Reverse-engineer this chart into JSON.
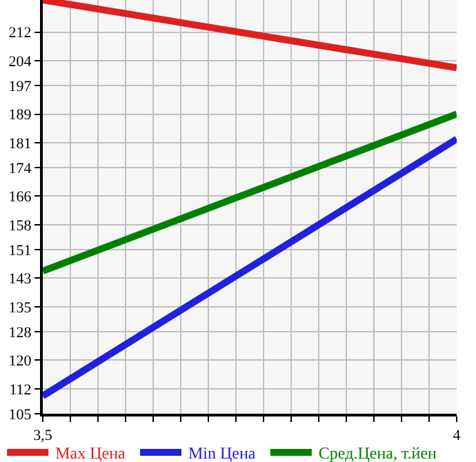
{
  "chart_data": {
    "type": "line",
    "x": [
      3.5,
      4
    ],
    "series": [
      {
        "name": "Max Цена",
        "color": "#dd2020",
        "values": [
          221,
          202
        ]
      },
      {
        "name": "Min Цена",
        "color": "#2020dd",
        "values": [
          110,
          182
        ]
      },
      {
        "name": "Сред.Цена, т.йен",
        "color": "#008000",
        "values": [
          145,
          189
        ]
      }
    ],
    "xlim": [
      3.5,
      4
    ],
    "xticks": [
      {
        "value": 3.5,
        "label": "3,5"
      },
      {
        "value": 3.5333,
        "label": null
      },
      {
        "value": 3.5667,
        "label": null
      },
      {
        "value": 3.6,
        "label": null
      },
      {
        "value": 3.6333,
        "label": null
      },
      {
        "value": 3.6667,
        "label": null
      },
      {
        "value": 3.7,
        "label": null
      },
      {
        "value": 3.7333,
        "label": null
      },
      {
        "value": 3.7667,
        "label": null
      },
      {
        "value": 3.8,
        "label": null
      },
      {
        "value": 3.8333,
        "label": null
      },
      {
        "value": 3.8667,
        "label": null
      },
      {
        "value": 3.9,
        "label": null
      },
      {
        "value": 3.9333,
        "label": null
      },
      {
        "value": 3.9667,
        "label": null
      },
      4
    ],
    "ylim": [
      105,
      221
    ],
    "yticks": [
      105,
      112,
      120,
      128,
      135,
      143,
      151,
      158,
      166,
      174,
      181,
      189,
      197,
      204,
      212
    ],
    "grid": true,
    "legend": "bottom",
    "marker": "none",
    "line_style": "solid"
  }
}
